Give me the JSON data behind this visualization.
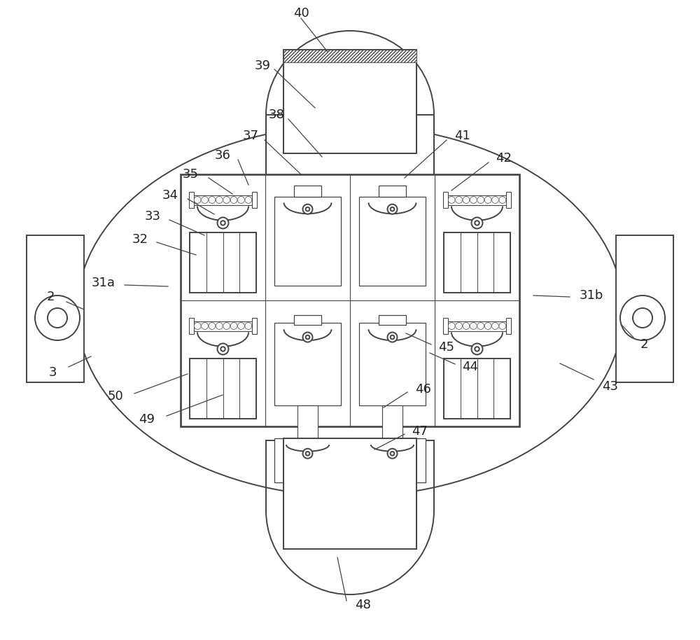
{
  "bg_color": "#ffffff",
  "line_color": "#444444",
  "fig_width": 10.0,
  "fig_height": 9.14,
  "dpi": 100
}
